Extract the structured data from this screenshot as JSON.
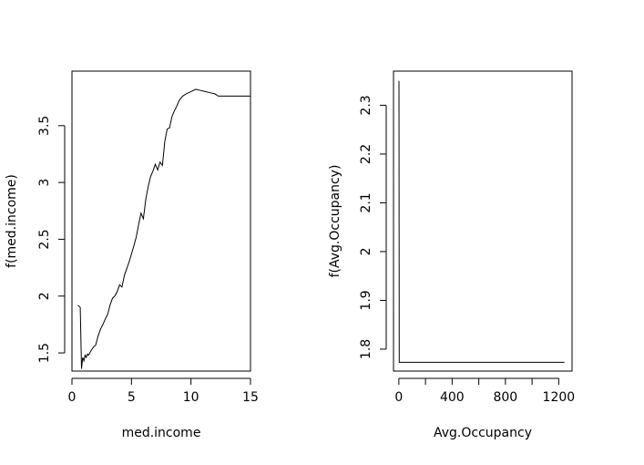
{
  "chart_data": [
    {
      "type": "line",
      "xlabel": "med.income",
      "ylabel": "f(med.income)",
      "xlim": [
        0,
        15
      ],
      "ylim": [
        1.34,
        3.98
      ],
      "xticks": [
        0,
        5,
        10,
        15
      ],
      "yticks": [
        1.5,
        2.0,
        2.5,
        3.0,
        3.5
      ],
      "grid": false,
      "series": [
        {
          "x": [
            0.5,
            0.7,
            0.8,
            0.9,
            1.0,
            1.1,
            1.2,
            1.3,
            1.4,
            1.6,
            1.8,
            2.0,
            2.2,
            2.4,
            2.6,
            2.8,
            3.0,
            3.2,
            3.4,
            3.6,
            3.8,
            4.0,
            4.2,
            4.4,
            4.6,
            4.8,
            5.0,
            5.2,
            5.4,
            5.6,
            5.8,
            6.0,
            6.2,
            6.4,
            6.6,
            6.8,
            7.0,
            7.2,
            7.4,
            7.6,
            7.8,
            8.0,
            8.2,
            8.4,
            8.6,
            8.8,
            9.0,
            9.3,
            9.6,
            10.0,
            10.4,
            10.8,
            11.2,
            11.6,
            12.0,
            12.3,
            12.5,
            15.0
          ],
          "y": [
            1.92,
            1.9,
            1.36,
            1.46,
            1.43,
            1.48,
            1.46,
            1.49,
            1.48,
            1.52,
            1.55,
            1.57,
            1.65,
            1.71,
            1.75,
            1.8,
            1.84,
            1.92,
            1.98,
            2.0,
            2.04,
            2.1,
            2.08,
            2.18,
            2.24,
            2.3,
            2.37,
            2.44,
            2.52,
            2.63,
            2.73,
            2.68,
            2.85,
            2.96,
            3.05,
            3.1,
            3.16,
            3.11,
            3.18,
            3.15,
            3.36,
            3.47,
            3.48,
            3.58,
            3.63,
            3.67,
            3.72,
            3.76,
            3.78,
            3.8,
            3.82,
            3.81,
            3.8,
            3.79,
            3.78,
            3.76,
            3.76,
            3.76
          ]
        }
      ]
    },
    {
      "type": "line",
      "xlabel": "Avg.Occupancy",
      "ylabel": "f(Avg.Occupancy)",
      "xlim": [
        -40,
        1300
      ],
      "ylim": [
        1.755,
        2.37
      ],
      "xticks": [
        0,
        400,
        800,
        1200
      ],
      "xticks_minor": [
        200,
        600,
        1000
      ],
      "yticks": [
        1.8,
        1.9,
        2.0,
        2.1,
        2.2,
        2.3
      ],
      "grid": false,
      "series": [
        {
          "x": [
            0.7,
            3,
            1243
          ],
          "y": [
            2.35,
            1.773,
            1.773
          ]
        }
      ]
    }
  ]
}
